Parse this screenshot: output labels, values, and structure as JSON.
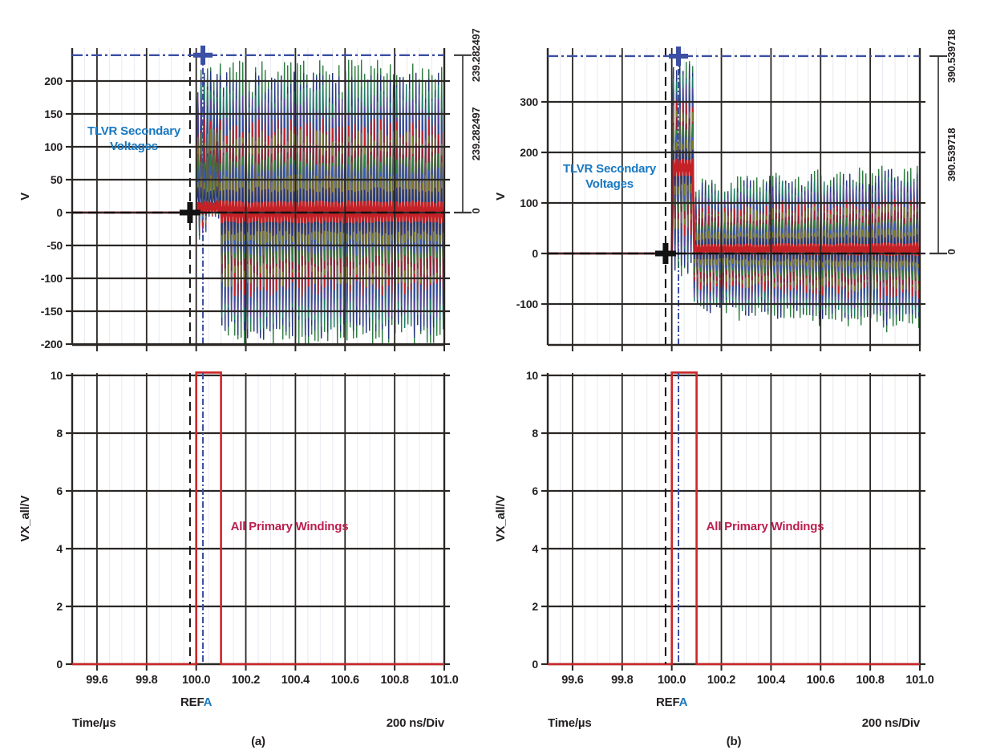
{
  "colors": {
    "background": "#ffffff",
    "axis": "#2a2725",
    "text": "#231f20",
    "minor_grid": "#e9eaf1",
    "cursor_blue": "#3b4fa4",
    "cursor_black": "#121212",
    "bracket": "#3a3a3a",
    "title_blue": "#1878c0",
    "annotation_crimson": "#bc1e4e",
    "trace_red": "#cc2627",
    "trace_palette": [
      "#2e7d40",
      "#27357f",
      "#1d7a66",
      "#5a3f98",
      "#34499e",
      "#c42127",
      "#7e7d2b",
      "#8f2236",
      "#2e7d40",
      "#3a5bb0",
      "#7e7d2b",
      "#27357f",
      "#c42127"
    ]
  },
  "figures": [
    {
      "caption": "(a)",
      "top_plot": {
        "title_lines": [
          "TLVR Secondary",
          "Voltages"
        ],
        "y_axis_label": "V",
        "y_ticks": [
          "200",
          "150",
          "100",
          "50",
          "0",
          "-50",
          "-100",
          "-150",
          "-200"
        ],
        "bracket": {
          "top_label": "239.282497",
          "delta_label": "239.282497",
          "zero_label": "0"
        }
      },
      "bottom_plot": {
        "annotation": "All Primary Windings",
        "y_axis_label": "VX_all/V",
        "y_ticks": [
          "10",
          "8",
          "6",
          "4",
          "2",
          "0"
        ],
        "x_ticks": [
          "99.6",
          "99.8",
          "100.0",
          "100.2",
          "100.4",
          "100.6",
          "100.8",
          "101.0"
        ],
        "ref_prefix": "REF",
        "ref_channel": "A",
        "time_label": "Time/µs",
        "scale_label": "200 ns/Div"
      }
    },
    {
      "caption": "(b)",
      "top_plot": {
        "title_lines": [
          "TLVR Secondary",
          "Voltages"
        ],
        "y_axis_label": "V",
        "y_ticks": [
          "300",
          "200",
          "100",
          "0",
          "-100"
        ],
        "bracket": {
          "top_label": "390.539718",
          "delta_label": "390.539718",
          "zero_label": "0"
        }
      },
      "bottom_plot": {
        "annotation": "All Primary Windings",
        "y_axis_label": "VX_all/V",
        "y_ticks": [
          "10",
          "8",
          "6",
          "4",
          "2",
          "0"
        ],
        "x_ticks": [
          "99.6",
          "99.8",
          "100.0",
          "100.2",
          "100.4",
          "100.6",
          "100.8",
          "101.0"
        ],
        "ref_prefix": "REF",
        "ref_channel": "A",
        "time_label": "Time/µs",
        "scale_label": "200 ns/Div"
      }
    }
  ],
  "chart_data": [
    {
      "figure": "a",
      "subplots": [
        {
          "type": "line",
          "role": "tlvr-secondary-voltages",
          "x_unit": "µs",
          "y_unit": "V",
          "xlim": [
            99.5,
            101.0
          ],
          "ylim": [
            -201,
            250
          ],
          "y_ticks": [
            200,
            150,
            100,
            50,
            0,
            -50,
            -100,
            -150,
            -200
          ],
          "step_time": 100.0,
          "pre_step_value": 0,
          "num_traces": 13,
          "seed": 7,
          "envelope": {
            "pos_peak": 228,
            "neg_peak": -203,
            "early_neg": -38,
            "early_neg_until": 100.05,
            "quiet_until": 100.1
          },
          "cursors": {
            "horiz_top": 239.282497,
            "horiz_zero": 0,
            "delta": 239.282497,
            "vert_black": 99.975,
            "vert_blue": 100.027
          }
        },
        {
          "type": "pulse",
          "role": "all-primary-windings",
          "xlim": [
            99.5,
            101.0
          ],
          "ylim": [
            0,
            10.2
          ],
          "y_ticks": [
            10,
            8,
            6,
            4,
            2,
            0
          ],
          "x_ticks": [
            99.6,
            99.8,
            100.0,
            100.2,
            100.4,
            100.6,
            100.8,
            101.0
          ],
          "baseline": 0,
          "pulse": {
            "start": 100.0,
            "end": 100.1,
            "height": 10.1
          },
          "ref_marker": 100.0,
          "x_scale_per_div": "200 ns/Div"
        }
      ]
    },
    {
      "figure": "b",
      "subplots": [
        {
          "type": "line",
          "role": "tlvr-secondary-voltages",
          "x_unit": "µs",
          "y_unit": "V",
          "xlim": [
            99.5,
            101.0
          ],
          "ylim": [
            -181,
            406
          ],
          "y_ticks": [
            300,
            200,
            100,
            0,
            -100
          ],
          "step_time": 100.0,
          "pre_step_value": 0,
          "num_traces": 13,
          "seed": 13,
          "burst": {
            "start": 100.0,
            "end": 100.088,
            "center": 170,
            "span": 220
          },
          "envelope": {
            "offset": 8,
            "top_start": 136,
            "top_end": 168,
            "bot_start": 128,
            "bot_end": 158,
            "wobble": 0.05
          },
          "cursors": {
            "horiz_top": 390.539718,
            "horiz_zero": 0,
            "delta": 390.539718,
            "vert_black": 99.975,
            "vert_blue": 100.027
          }
        },
        {
          "type": "pulse",
          "role": "all-primary-windings",
          "xlim": [
            99.5,
            101.0
          ],
          "ylim": [
            0,
            10.2
          ],
          "y_ticks": [
            10,
            8,
            6,
            4,
            2,
            0
          ],
          "x_ticks": [
            99.6,
            99.8,
            100.0,
            100.2,
            100.4,
            100.6,
            100.8,
            101.0
          ],
          "baseline": 0,
          "pulse": {
            "start": 100.0,
            "end": 100.1,
            "height": 10.1
          },
          "ref_marker": 100.0,
          "x_scale_per_div": "200 ns/Div"
        }
      ]
    }
  ]
}
